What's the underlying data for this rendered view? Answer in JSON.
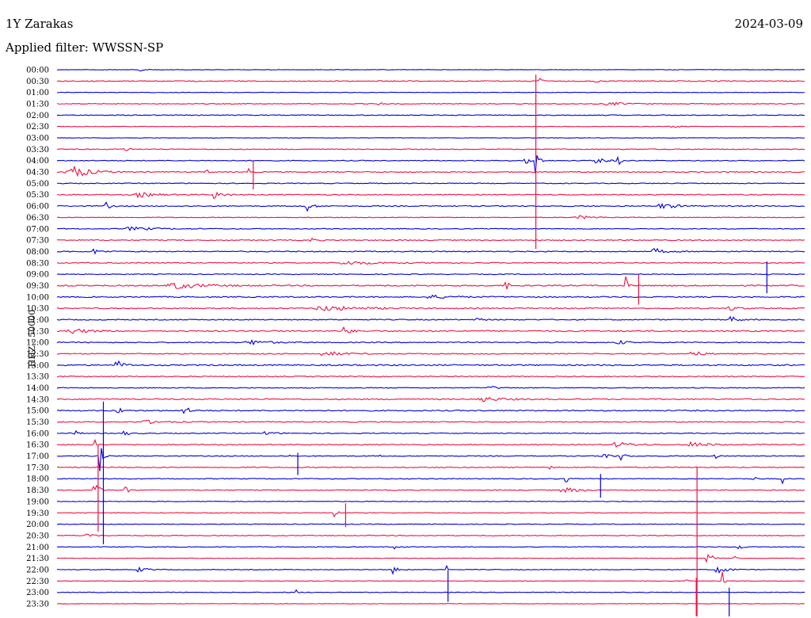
{
  "header": {
    "station": "1Y Zarakas",
    "date": "2024-03-09",
    "filter": "Applied filter: WWSSN-SP"
  },
  "chart_data": {
    "type": "line",
    "title": "1Y Zarakas",
    "subtitle": "Applied filter: WWSSN-SP",
    "ylabel": "HHZ - 50000",
    "xlabel": "",
    "trace_colors": [
      "#0000dd",
      "#ee1144"
    ],
    "rows": [
      "00:00",
      "00:30",
      "01:00",
      "01:30",
      "02:00",
      "02:30",
      "03:00",
      "03:30",
      "04:00",
      "04:30",
      "05:00",
      "05:30",
      "06:00",
      "06:30",
      "07:00",
      "07:30",
      "08:00",
      "08:30",
      "09:00",
      "09:30",
      "10:00",
      "10:30",
      "11:00",
      "11:30",
      "12:00",
      "12:30",
      "13:00",
      "13:30",
      "14:00",
      "14:30",
      "15:00",
      "15:30",
      "16:00",
      "16:30",
      "17:00",
      "17:30",
      "18:00",
      "18:30",
      "19:00",
      "19:30",
      "20:00",
      "20:30",
      "21:00",
      "21:30",
      "22:00",
      "22:30",
      "23:00",
      "23:30"
    ],
    "x_range_minutes": [
      0,
      30
    ],
    "noise": [
      0.3,
      0.6,
      0.3,
      0.5,
      0.5,
      0.3,
      0.3,
      0.5,
      0.5,
      0.6,
      0.5,
      0.6,
      0.6,
      0.4,
      0.5,
      0.6,
      0.6,
      0.6,
      0.5,
      0.8,
      0.7,
      0.7,
      0.6,
      0.8,
      0.6,
      0.6,
      0.8,
      0.6,
      0.5,
      0.7,
      0.7,
      0.6,
      0.5,
      0.6,
      0.5,
      0.6,
      0.5,
      0.5,
      0.4,
      0.4,
      0.4,
      0.5,
      0.4,
      0.3,
      0.4,
      0.3,
      0.4,
      0.3
    ],
    "events": [
      {
        "row": 0,
        "t": 0.11,
        "a": 5,
        "w": 0.004
      },
      {
        "row": 1,
        "t": 0.72,
        "a": 6,
        "w": 0.003
      },
      {
        "row": 1,
        "t": 0.645,
        "a": 5,
        "w": 0.004
      },
      {
        "row": 3,
        "t": 0.43,
        "a": 2,
        "w": 0.005
      },
      {
        "row": 3,
        "t": 0.74,
        "a": 2,
        "w": 0.02
      },
      {
        "row": 5,
        "t": 0.82,
        "a": 2,
        "w": 0.01
      },
      {
        "row": 7,
        "t": 0.09,
        "a": 3,
        "w": 0.006
      },
      {
        "row": 8,
        "t": 0.64,
        "a": 36,
        "w": 0.003
      },
      {
        "row": 8,
        "t": 0.625,
        "a": 8,
        "w": 0.004
      },
      {
        "row": 8,
        "t": 0.75,
        "a": 12,
        "w": 0.002
      },
      {
        "row": 8,
        "t": 0.72,
        "a": 3,
        "w": 0.015
      },
      {
        "row": 9,
        "t": 0.018,
        "a": 9,
        "w": 0.02
      },
      {
        "row": 9,
        "t": 0.255,
        "a": 14,
        "w": 0.001
      },
      {
        "row": 9,
        "t": 0.2,
        "a": 3,
        "w": 0.003
      },
      {
        "row": 11,
        "t": 0.11,
        "a": 3,
        "w": 0.02
      },
      {
        "row": 11,
        "t": 0.21,
        "a": 5,
        "w": 0.01
      },
      {
        "row": 12,
        "t": 0.065,
        "a": 5,
        "w": 0.005
      },
      {
        "row": 12,
        "t": 0.335,
        "a": 6,
        "w": 0.006
      },
      {
        "row": 12,
        "t": 0.81,
        "a": 3,
        "w": 0.02
      },
      {
        "row": 13,
        "t": 0.7,
        "a": 2,
        "w": 0.02
      },
      {
        "row": 14,
        "t": 0.1,
        "a": 2,
        "w": 0.03
      },
      {
        "row": 15,
        "t": 0.34,
        "a": 3,
        "w": 0.005
      },
      {
        "row": 16,
        "t": 0.05,
        "a": 3,
        "w": 0.01
      },
      {
        "row": 16,
        "t": 0.8,
        "a": 4,
        "w": 0.01
      },
      {
        "row": 17,
        "t": 0.39,
        "a": 2,
        "w": 0.04
      },
      {
        "row": 18,
        "t": 0.95,
        "a": 12,
        "w": 0.002
      },
      {
        "row": 19,
        "t": 0.16,
        "a": 4,
        "w": 0.03
      },
      {
        "row": 19,
        "t": 0.6,
        "a": 6,
        "w": 0.004
      },
      {
        "row": 19,
        "t": 0.76,
        "a": 18,
        "w": 0.002
      },
      {
        "row": 20,
        "t": 0.5,
        "a": 2,
        "w": 0.03
      },
      {
        "row": 21,
        "t": 0.36,
        "a": 3,
        "w": 0.04
      },
      {
        "row": 21,
        "t": 0.9,
        "a": 3,
        "w": 0.01
      },
      {
        "row": 22,
        "t": 0.56,
        "a": 4,
        "w": 0.006
      },
      {
        "row": 22,
        "t": 0.9,
        "a": 5,
        "w": 0.008
      },
      {
        "row": 23,
        "t": 0.02,
        "a": 3,
        "w": 0.02
      },
      {
        "row": 23,
        "t": 0.385,
        "a": 7,
        "w": 0.006
      },
      {
        "row": 24,
        "t": 0.26,
        "a": 3,
        "w": 0.02
      },
      {
        "row": 24,
        "t": 0.75,
        "a": 3,
        "w": 0.01
      },
      {
        "row": 25,
        "t": 0.36,
        "a": 3,
        "w": 0.02
      },
      {
        "row": 25,
        "t": 0.85,
        "a": 4,
        "w": 0.01
      },
      {
        "row": 26,
        "t": 0.08,
        "a": 6,
        "w": 0.008
      },
      {
        "row": 28,
        "t": 0.58,
        "a": 2,
        "w": 0.01
      },
      {
        "row": 29,
        "t": 0.57,
        "a": 3,
        "w": 0.02
      },
      {
        "row": 30,
        "t": 0.08,
        "a": 8,
        "w": 0.004
      },
      {
        "row": 30,
        "t": 0.17,
        "a": 5,
        "w": 0.008
      },
      {
        "row": 31,
        "t": 0.12,
        "a": 2,
        "w": 0.02
      },
      {
        "row": 32,
        "t": 0.025,
        "a": 3,
        "w": 0.005
      },
      {
        "row": 32,
        "t": 0.09,
        "a": 3,
        "w": 0.006
      },
      {
        "row": 32,
        "t": 0.28,
        "a": 3,
        "w": 0.008
      },
      {
        "row": 33,
        "t": 0.05,
        "a": 8,
        "w": 0.002
      },
      {
        "row": 33,
        "t": 0.75,
        "a": 3,
        "w": 0.02
      },
      {
        "row": 33,
        "t": 0.85,
        "a": 3,
        "w": 0.02
      },
      {
        "row": 34,
        "t": 0.057,
        "a": 22,
        "w": 0.003
      },
      {
        "row": 34,
        "t": 0.31,
        "a": 10,
        "w": 0.001
      },
      {
        "row": 34,
        "t": 0.43,
        "a": 8,
        "w": 0.001
      },
      {
        "row": 34,
        "t": 0.73,
        "a": 8,
        "w": 0.006
      },
      {
        "row": 34,
        "t": 0.755,
        "a": 7,
        "w": 0.004
      },
      {
        "row": 34,
        "t": 0.88,
        "a": 5,
        "w": 0.002
      },
      {
        "row": 35,
        "t": 0.66,
        "a": 6,
        "w": 0.003
      },
      {
        "row": 36,
        "t": 0.68,
        "a": 10,
        "w": 0.002
      },
      {
        "row": 36,
        "t": 0.93,
        "a": 6,
        "w": 0.003
      },
      {
        "row": 36,
        "t": 0.97,
        "a": 14,
        "w": 0.001
      },
      {
        "row": 37,
        "t": 0.05,
        "a": 12,
        "w": 0.005
      },
      {
        "row": 37,
        "t": 0.09,
        "a": 6,
        "w": 0.005
      },
      {
        "row": 37,
        "t": 0.68,
        "a": 3,
        "w": 0.02
      },
      {
        "row": 39,
        "t": 0.37,
        "a": 12,
        "w": 0.003
      },
      {
        "row": 41,
        "t": 0.04,
        "a": 4,
        "w": 0.006
      },
      {
        "row": 42,
        "t": 0.45,
        "a": 3,
        "w": 0.005
      },
      {
        "row": 42,
        "t": 0.91,
        "a": 7,
        "w": 0.004
      },
      {
        "row": 43,
        "t": 0.87,
        "a": 20,
        "w": 0.004
      },
      {
        "row": 43,
        "t": 0.905,
        "a": 12,
        "w": 0.002
      },
      {
        "row": 44,
        "t": 0.11,
        "a": 3,
        "w": 0.01
      },
      {
        "row": 44,
        "t": 0.45,
        "a": 6,
        "w": 0.005
      },
      {
        "row": 44,
        "t": 0.52,
        "a": 18,
        "w": 0.001
      },
      {
        "row": 44,
        "t": 0.885,
        "a": 6,
        "w": 0.01
      },
      {
        "row": 45,
        "t": 0.84,
        "a": 8,
        "w": 0.002
      },
      {
        "row": 45,
        "t": 0.89,
        "a": 18,
        "w": 0.002
      },
      {
        "row": 46,
        "t": 0.32,
        "a": 4,
        "w": 0.002
      }
    ],
    "spikes": [
      {
        "row": 1,
        "t": 0.6405,
        "dy": -8,
        "len": 220
      },
      {
        "row": 9,
        "t": 0.2625,
        "dy": -14,
        "len": 36
      },
      {
        "row": 18,
        "t": 0.9495,
        "dy": -16,
        "len": 40
      },
      {
        "row": 19,
        "t": 0.778,
        "dy": -14,
        "len": 38
      },
      {
        "row": 32,
        "t": 0.062,
        "dy": -40,
        "len": 180
      },
      {
        "row": 33,
        "t": 0.055,
        "dy": 0,
        "len": 110
      },
      {
        "row": 34,
        "t": 0.322,
        "dy": -4,
        "len": 28
      },
      {
        "row": 36,
        "t": 0.727,
        "dy": -6,
        "len": 30
      },
      {
        "row": 39,
        "t": 0.386,
        "dy": -12,
        "len": 30
      },
      {
        "row": 41,
        "t": 0.856,
        "dy": -86,
        "len": 190
      },
      {
        "row": 45,
        "t": 0.855,
        "dy": -4,
        "len": 48
      },
      {
        "row": 46,
        "t": 0.523,
        "dy": -28,
        "len": 40
      },
      {
        "row": 46,
        "t": 0.899,
        "dy": -6,
        "len": 40
      }
    ]
  }
}
